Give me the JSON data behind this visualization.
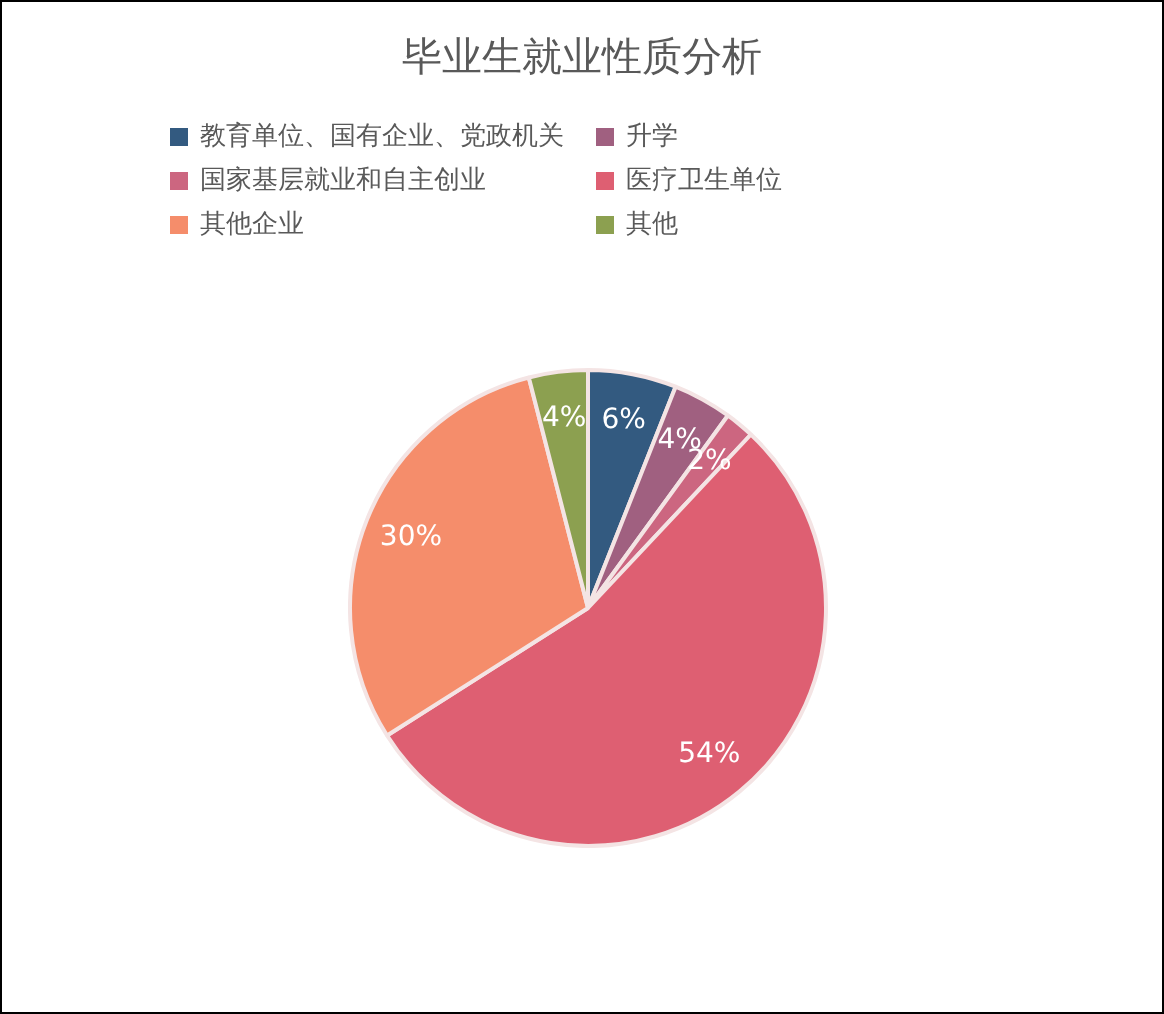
{
  "chart_data": {
    "type": "pie",
    "title": "毕业生就业性质分析",
    "categories": [
      "教育单位、国有企业、党政机关",
      "升学",
      "国家基层就业和自主创业",
      "医疗卫生单位",
      "其他企业",
      "其他"
    ],
    "values": [
      6,
      4,
      2,
      54,
      30,
      4
    ],
    "value_labels": [
      "6%",
      "4%",
      "2%",
      "54%",
      "30%",
      "4%"
    ],
    "colors": [
      "#335a80",
      "#a06080",
      "#cc6680",
      "#de5f72",
      "#f58d6b",
      "#8ca050"
    ],
    "legend": "top"
  }
}
